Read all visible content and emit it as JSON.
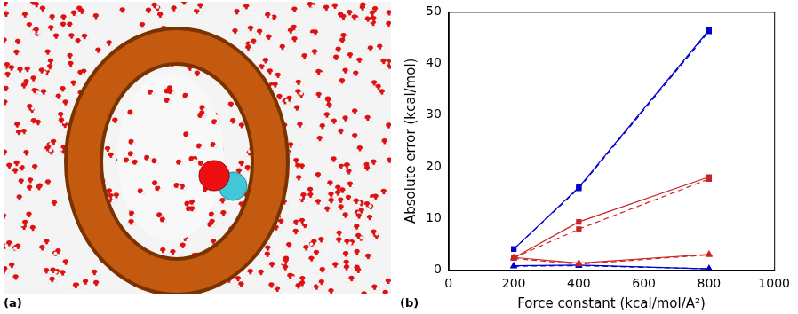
{
  "panel_labels": [
    "(a)",
    "(b)"
  ],
  "chart_data": {
    "type": "line",
    "x_label": "Force constant (kcal/mol/A²)",
    "y_label": "Absolute error (kcal/mol)",
    "x": [
      200,
      400,
      800
    ],
    "xlim": [
      0,
      1000
    ],
    "xticks": [
      0,
      200,
      400,
      600,
      800,
      1000
    ],
    "ylim": [
      0,
      50
    ],
    "yticks": [
      0,
      10,
      20,
      30,
      40,
      50
    ],
    "grid": false,
    "series": [
      {
        "color": "#0000cc",
        "marker": "square",
        "line_style": "solid",
        "values": [
          4.0,
          16.0,
          46.5
        ]
      },
      {
        "color": "#0000cc",
        "marker": "square",
        "line_style": "dashed",
        "values": [
          4.0,
          15.8,
          46.2
        ]
      },
      {
        "color": "#cc2222",
        "marker": "square",
        "line_style": "solid",
        "values": [
          2.3,
          9.3,
          18.0
        ]
      },
      {
        "color": "#cc2222",
        "marker": "square",
        "line_style": "dashed",
        "values": [
          2.3,
          7.9,
          17.6
        ]
      },
      {
        "color": "#cc2222",
        "marker": "triangle",
        "line_style": "solid",
        "values": [
          2.4,
          1.3,
          3.0
        ]
      },
      {
        "color": "#cc2222",
        "marker": "triangle",
        "line_style": "dashed",
        "values": [
          2.2,
          1.1,
          2.9
        ]
      },
      {
        "color": "#0000cc",
        "marker": "triangle",
        "line_style": "solid",
        "values": [
          0.8,
          0.9,
          0.2
        ]
      },
      {
        "color": "#0000cc",
        "marker": "triangle",
        "line_style": "dashed",
        "values": [
          0.7,
          0.8,
          0.2
        ]
      }
    ]
  }
}
